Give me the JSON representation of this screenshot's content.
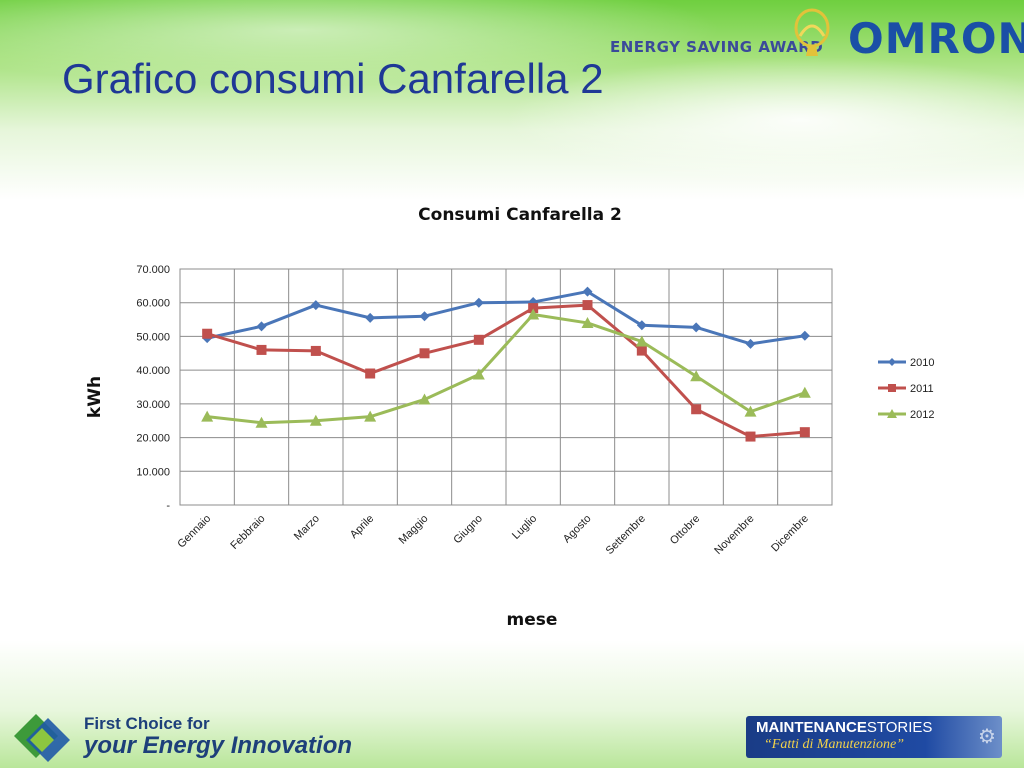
{
  "page": {
    "title": "Grafico consumi Canfarella 2",
    "award_text": "ENERGY SAVING AWARD",
    "brand": "OMRON",
    "footer_left_line1": "First Choice for",
    "footer_left_line2": "your Energy Innovation",
    "footer_right_bold": "MAINTENANCE",
    "footer_right_light": "STORIES",
    "footer_right_line2": "“Fatti di Manutenzione”"
  },
  "colors": {
    "title": "#1f3896",
    "series_2010": "#4a76b8",
    "series_2011": "#c0504d",
    "series_2012": "#9bbb59"
  },
  "chart_data": {
    "type": "line",
    "title": "Consumi Canfarella 2",
    "xlabel": "mese",
    "ylabel": "kWh",
    "ylim": [
      0,
      70000
    ],
    "y_ticks": [
      "-",
      "10.000",
      "20.000",
      "30.000",
      "40.000",
      "50.000",
      "60.000",
      "70.000"
    ],
    "grid": true,
    "legend_position": "right",
    "categories": [
      "Gennaio",
      "Febbraio",
      "Marzo",
      "Aprile",
      "Maggio",
      "Giugno",
      "Luglio",
      "Agosto",
      "Settembre",
      "Ottobre",
      "Novembre",
      "Dicembre"
    ],
    "series": [
      {
        "name": "2010",
        "marker": "diamond",
        "color": "#4a76b8",
        "values": [
          49500,
          53000,
          59300,
          55500,
          56000,
          60000,
          60200,
          63300,
          53300,
          52700,
          47800,
          50200
        ]
      },
      {
        "name": "2011",
        "marker": "square",
        "color": "#c0504d",
        "values": [
          50800,
          46000,
          45700,
          39000,
          45000,
          49000,
          58400,
          59300,
          45800,
          28400,
          20300,
          21600
        ]
      },
      {
        "name": "2012",
        "marker": "triangle",
        "color": "#9bbb59",
        "values": [
          26200,
          24400,
          25000,
          26200,
          31300,
          38700,
          56500,
          54000,
          48500,
          38200,
          27700,
          33300
        ]
      }
    ]
  }
}
